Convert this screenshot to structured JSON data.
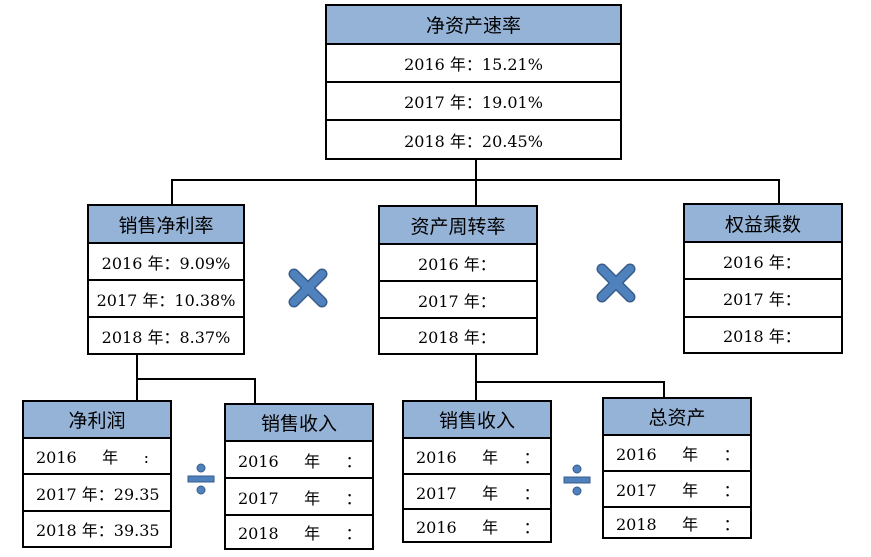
{
  "root": {
    "title": "净资产速率",
    "rows": [
      "2016 年：15.21%",
      "2017 年：19.01%",
      "2018 年：20.45%"
    ]
  },
  "net_margin": {
    "title": "销售净利率",
    "rows": [
      "2016 年：9.09%",
      "2017 年：10.38%",
      "2018 年：8.37%"
    ]
  },
  "turnover": {
    "title": "资产周转率",
    "rows": [
      "2016 年：",
      "2017 年：",
      "2018 年："
    ]
  },
  "equity_multiplier": {
    "title": "权益乘数",
    "rows": [
      "2016 年：",
      "2017 年：",
      "2018 年："
    ]
  },
  "net_profit": {
    "title": "净利润",
    "rows": [
      "2016     年     :",
      "2017 年：29.35",
      "2018 年：39.35"
    ]
  },
  "sales_revenue_1": {
    "title": "销售收入",
    "rows": [
      "2016     年     ：",
      "2017     年     ：",
      "2018     年     ："
    ]
  },
  "sales_revenue_2": {
    "title": "销售收入",
    "rows": [
      "2016     年     ：",
      "2017     年     ：",
      "2016     年     ："
    ]
  },
  "total_assets": {
    "title": "总资产",
    "rows": [
      "2016     年     ：",
      "2017     年     ：",
      "2018     年     ："
    ]
  },
  "colors": {
    "header": "#95b3d7",
    "operator": "#4f81bd",
    "border": "#000000"
  },
  "operators": [
    "multiply-icon",
    "multiply-icon",
    "divide-icon",
    "divide-icon"
  ]
}
